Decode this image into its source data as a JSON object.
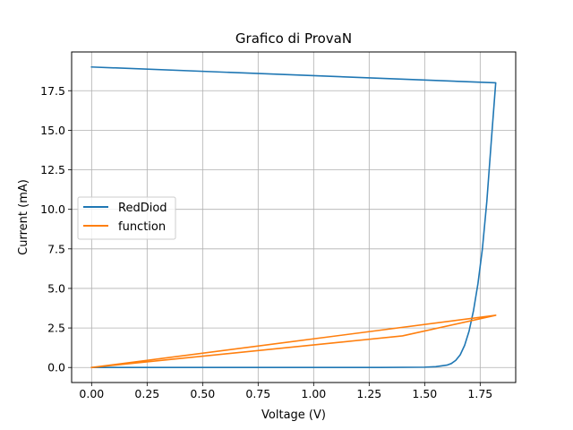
{
  "chart_data": {
    "type": "line",
    "title": "Grafico di ProvaN",
    "xlabel": "Voltage (V)",
    "ylabel": "Current (mA)",
    "xlim": [
      -0.09,
      1.91
    ],
    "ylim": [
      -0.95,
      19.95
    ],
    "xticks": [
      0.0,
      0.25,
      0.5,
      0.75,
      1.0,
      1.25,
      1.5,
      1.75
    ],
    "xtick_labels": [
      "0.00",
      "0.25",
      "0.50",
      "0.75",
      "1.00",
      "1.25",
      "1.50",
      "1.75"
    ],
    "yticks": [
      0.0,
      2.5,
      5.0,
      7.5,
      10.0,
      12.5,
      15.0,
      17.5
    ],
    "ytick_labels": [
      "0.0",
      "2.5",
      "5.0",
      "7.5",
      "10.0",
      "12.5",
      "15.0",
      "17.5"
    ],
    "grid": true,
    "legend_position": "center-left",
    "series": [
      {
        "name": "RedDiod",
        "color": "#1f77b4",
        "x": [
          0.0,
          1.0,
          1.3,
          1.5,
          1.55,
          1.6,
          1.62,
          1.64,
          1.66,
          1.68,
          1.7,
          1.72,
          1.74,
          1.76,
          1.78,
          1.8,
          1.82,
          1.82,
          1.0,
          0.0
        ],
        "y": [
          0.0,
          0.0,
          0.0,
          0.02,
          0.05,
          0.15,
          0.25,
          0.45,
          0.8,
          1.4,
          2.3,
          3.6,
          5.3,
          7.5,
          10.5,
          14.3,
          18.0,
          18.0,
          18.45,
          19.0
        ]
      },
      {
        "name": "function",
        "color": "#ff7f0e",
        "x": [
          0.0,
          1.4,
          1.82,
          0.0
        ],
        "y": [
          0.0,
          2.0,
          3.3,
          0.0
        ]
      }
    ]
  }
}
